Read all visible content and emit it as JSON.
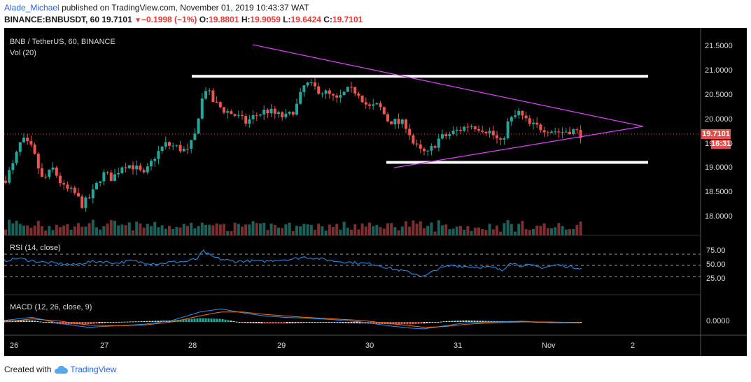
{
  "header": {
    "author": "Alade_Michael",
    "published": "published on TradingView.com, November 01, 2019 10:43:37 WAT",
    "symbol": "BINANCE:BNBUSDT, 60",
    "last": "19.7101",
    "change_arrow": "▼",
    "change": "−0.1998 (−1%)",
    "o_label": "O:",
    "o": "19.8801",
    "h_label": "H:",
    "h": "19.9059",
    "l_label": "L:",
    "l": "19.6424",
    "c_label": "C:",
    "c": "19.7101"
  },
  "pane_labels": {
    "title": "BNB / TetherUS, 60, BINANCE",
    "vol": "Vol (20)",
    "rsi": "RSI (14, close)",
    "macd": "MACD (12, 26, close, 9)"
  },
  "price_axis": [
    "21.5000",
    "21.0000",
    "20.5000",
    "20.0000",
    "19.5000",
    "19.0000",
    "18.5000",
    "18.0000"
  ],
  "rsi_axis": [
    "75.00",
    "50.00",
    "25.00"
  ],
  "macd_axis": [
    "0.0000"
  ],
  "time_axis": [
    "26",
    "27",
    "28",
    "29",
    "30",
    "31",
    "Nov",
    "2"
  ],
  "badges": {
    "price": "19.7101",
    "timer": "16:31"
  },
  "footer": {
    "created_with": "Created with",
    "brand": "TradingView"
  },
  "colors": {
    "background": "#000000",
    "up": "#26a69a",
    "down": "#ef5350",
    "triangle": "#e040fb",
    "levels": "#ffffff",
    "rsi": "#2196f3",
    "macd": "#2196f3",
    "signal": "#ff6d00",
    "badge": "#e84c4c",
    "brand": "#2962ff"
  },
  "drawings": {
    "resistance_level": 20.9,
    "support_level": 19.13,
    "triangle": "symmetrical triangle"
  },
  "icons": [
    "down-arrow-icon",
    "tradingview-cloud-icon"
  ],
  "chart_data": {
    "type": "candlestick",
    "title": "BNB / TetherUS, 60, BINANCE",
    "x_ticks": [
      "26",
      "27",
      "28",
      "29",
      "30",
      "31",
      "Nov",
      "2"
    ],
    "y_range": [
      17.7,
      21.65
    ],
    "y_ticks": [
      21.5,
      21.0,
      20.5,
      20.0,
      19.5,
      19.0,
      18.5,
      18.0
    ],
    "last_close": 19.7101,
    "close_path": [
      [
        0,
        18.75
      ],
      [
        12,
        19.05
      ],
      [
        25,
        19.6
      ],
      [
        40,
        19.4
      ],
      [
        55,
        18.75
      ],
      [
        70,
        19.0
      ],
      [
        85,
        18.6
      ],
      [
        100,
        18.5
      ],
      [
        112,
        18.25
      ],
      [
        125,
        18.45
      ],
      [
        140,
        18.9
      ],
      [
        155,
        18.8
      ],
      [
        170,
        19.1
      ],
      [
        185,
        19.05
      ],
      [
        200,
        18.85
      ],
      [
        215,
        19.25
      ],
      [
        230,
        19.5
      ],
      [
        245,
        19.45
      ],
      [
        262,
        19.35
      ],
      [
        272,
        19.65
      ],
      [
        280,
        20.3
      ],
      [
        288,
        20.65
      ],
      [
        300,
        20.35
      ],
      [
        315,
        20.2
      ],
      [
        330,
        20.1
      ],
      [
        345,
        19.95
      ],
      [
        360,
        20.1
      ],
      [
        375,
        20.2
      ],
      [
        390,
        20.1
      ],
      [
        405,
        20.05
      ],
      [
        418,
        20.3
      ],
      [
        430,
        20.75
      ],
      [
        445,
        20.65
      ],
      [
        460,
        20.55
      ],
      [
        475,
        20.4
      ],
      [
        490,
        20.6
      ],
      [
        505,
        20.6
      ],
      [
        520,
        20.25
      ],
      [
        535,
        20.3
      ],
      [
        548,
        20.0
      ],
      [
        560,
        19.95
      ],
      [
        575,
        19.9
      ],
      [
        585,
        19.5
      ],
      [
        595,
        19.35
      ],
      [
        605,
        19.3
      ],
      [
        620,
        19.6
      ],
      [
        635,
        19.7
      ],
      [
        650,
        19.8
      ],
      [
        665,
        19.9
      ],
      [
        680,
        19.85
      ],
      [
        695,
        19.75
      ],
      [
        710,
        19.5
      ],
      [
        720,
        19.95
      ],
      [
        735,
        20.15
      ],
      [
        750,
        19.9
      ],
      [
        765,
        19.85
      ],
      [
        780,
        19.8
      ],
      [
        795,
        19.75
      ],
      [
        810,
        19.8
      ],
      [
        826,
        19.7
      ]
    ],
    "rsi_path": [
      [
        0,
        58
      ],
      [
        20,
        63
      ],
      [
        40,
        58
      ],
      [
        60,
        55
      ],
      [
        80,
        53
      ],
      [
        100,
        51
      ],
      [
        120,
        56
      ],
      [
        140,
        57
      ],
      [
        160,
        54
      ],
      [
        180,
        58
      ],
      [
        200,
        55
      ],
      [
        220,
        53
      ],
      [
        240,
        56
      ],
      [
        260,
        57
      ],
      [
        276,
        62
      ],
      [
        284,
        76
      ],
      [
        296,
        66
      ],
      [
        310,
        61
      ],
      [
        330,
        57
      ],
      [
        350,
        58
      ],
      [
        370,
        57
      ],
      [
        390,
        60
      ],
      [
        410,
        61
      ],
      [
        430,
        65
      ],
      [
        450,
        62
      ],
      [
        470,
        58
      ],
      [
        490,
        56
      ],
      [
        510,
        54
      ],
      [
        530,
        52
      ],
      [
        550,
        45
      ],
      [
        570,
        40
      ],
      [
        590,
        34
      ],
      [
        600,
        30
      ],
      [
        620,
        44
      ],
      [
        640,
        50
      ],
      [
        660,
        48
      ],
      [
        680,
        47
      ],
      [
        700,
        46
      ],
      [
        712,
        40
      ],
      [
        722,
        56
      ],
      [
        736,
        50
      ],
      [
        750,
        50
      ],
      [
        770,
        46
      ],
      [
        790,
        51
      ],
      [
        810,
        47
      ],
      [
        826,
        45
      ]
    ],
    "macd_path": [
      [
        0,
        0.02
      ],
      [
        40,
        0.06
      ],
      [
        80,
        -0.02
      ],
      [
        120,
        -0.07
      ],
      [
        160,
        -0.05
      ],
      [
        200,
        -0.03
      ],
      [
        240,
        0.02
      ],
      [
        280,
        0.13
      ],
      [
        310,
        0.17
      ],
      [
        340,
        0.12
      ],
      [
        370,
        0.08
      ],
      [
        400,
        0.06
      ],
      [
        430,
        0.05
      ],
      [
        470,
        0.03
      ],
      [
        510,
        0.0
      ],
      [
        550,
        -0.05
      ],
      [
        580,
        -0.08
      ],
      [
        600,
        -0.09
      ],
      [
        630,
        -0.05
      ],
      [
        660,
        -0.01
      ],
      [
        700,
        0.0
      ],
      [
        740,
        0.01
      ],
      [
        780,
        -0.01
      ],
      [
        826,
        -0.01
      ]
    ],
    "signal_path": [
      [
        0,
        0.0
      ],
      [
        40,
        0.04
      ],
      [
        80,
        0.01
      ],
      [
        120,
        -0.04
      ],
      [
        160,
        -0.05
      ],
      [
        200,
        -0.04
      ],
      [
        240,
        0.0
      ],
      [
        280,
        0.08
      ],
      [
        310,
        0.13
      ],
      [
        340,
        0.13
      ],
      [
        370,
        0.1
      ],
      [
        400,
        0.08
      ],
      [
        430,
        0.06
      ],
      [
        470,
        0.04
      ],
      [
        510,
        0.02
      ],
      [
        550,
        -0.02
      ],
      [
        580,
        -0.05
      ],
      [
        600,
        -0.07
      ],
      [
        630,
        -0.06
      ],
      [
        660,
        -0.03
      ],
      [
        700,
        -0.01
      ],
      [
        740,
        0.0
      ],
      [
        780,
        0.0
      ],
      [
        826,
        -0.01
      ]
    ],
    "rsi_levels": [
      70,
      50,
      30
    ],
    "series": [
      {
        "name": "BNB / TetherUS"
      },
      {
        "name": "Vol (20)"
      },
      {
        "name": "RSI (14, close)"
      },
      {
        "name": "MACD (12, 26, close, 9)"
      }
    ]
  }
}
